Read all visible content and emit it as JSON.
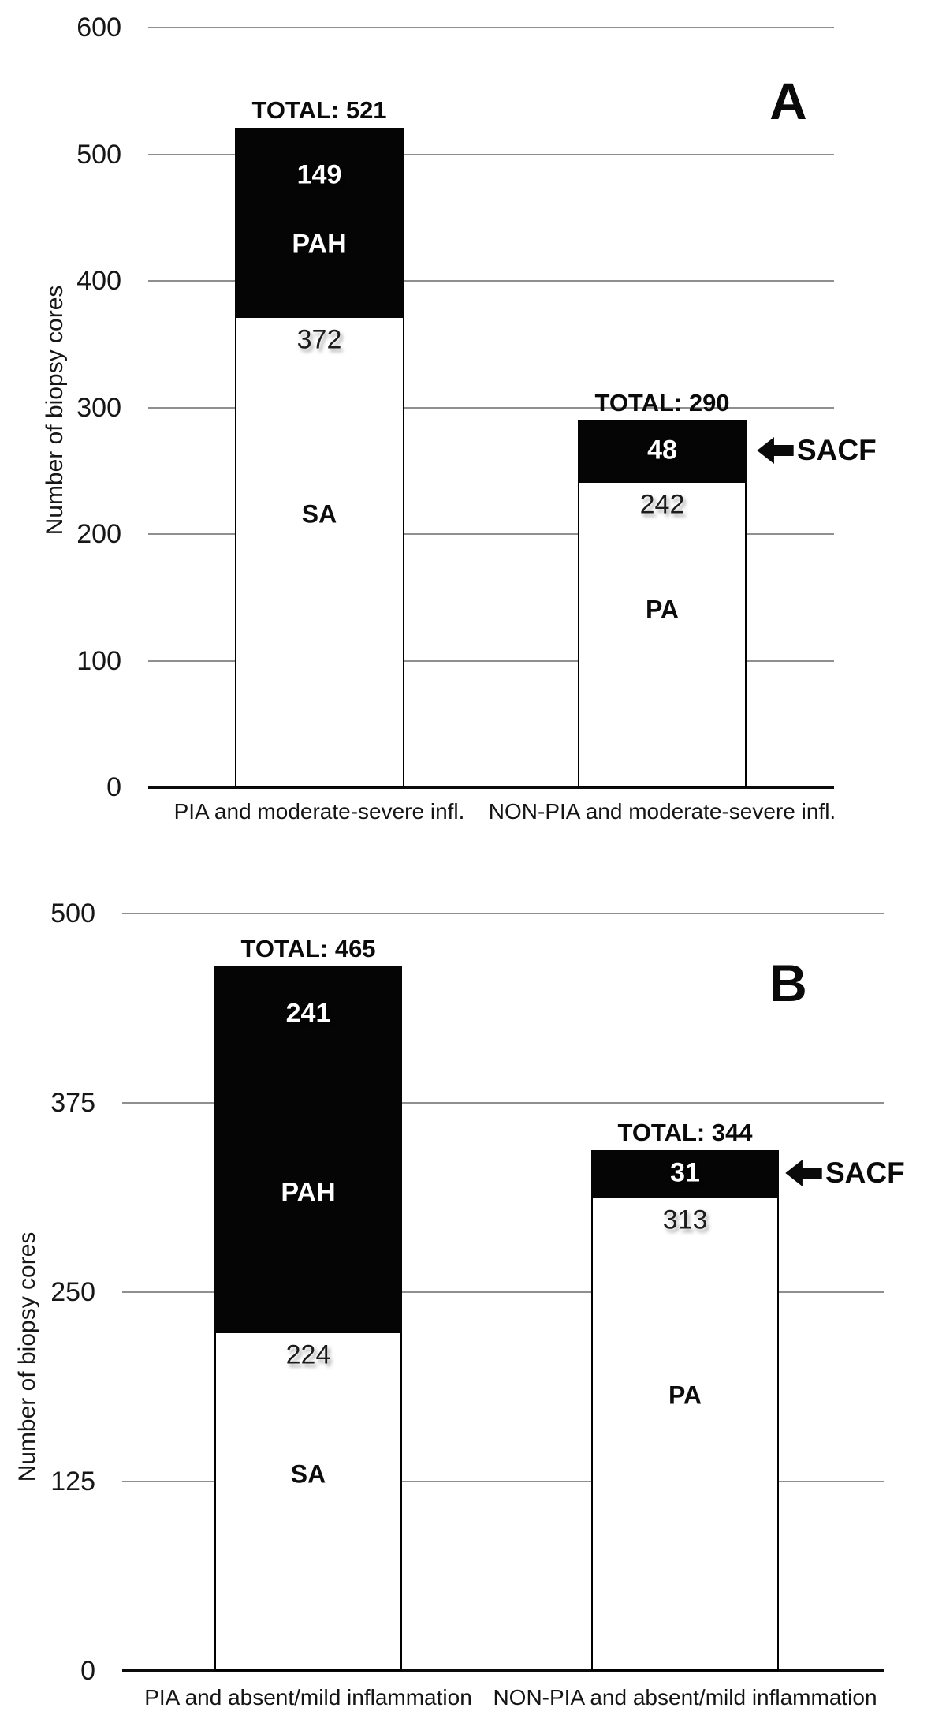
{
  "colors": {
    "segment_black": "#050505",
    "segment_white": "#ffffff",
    "grid": "#8f8f8f",
    "axis_line": "#0b0b0b",
    "text": "#111111"
  },
  "chart_data": [
    {
      "type": "bar",
      "panel_label": "A",
      "ylabel": "Number of biopsy cores",
      "ylim": [
        0,
        600
      ],
      "yticks": [
        0,
        100,
        200,
        300,
        400,
        500,
        600
      ],
      "grid": true,
      "legend_position": "none",
      "categories": [
        "PIA and moderate-severe infl.",
        "NON-PIA and moderate-severe infl."
      ],
      "bars": [
        {
          "category": "PIA and moderate-severe infl.",
          "total": 521,
          "total_label": "TOTAL: 521",
          "segments": [
            {
              "label": "SA",
              "value": 372,
              "fill": "white",
              "name_inside": true
            },
            {
              "label": "PAH",
              "value": 149,
              "fill": "black",
              "name_inside": true
            }
          ]
        },
        {
          "category": "NON-PIA and moderate-severe infl.",
          "total": 290,
          "total_label": "TOTAL: 290",
          "annotation": "SACF",
          "segments": [
            {
              "label": "PA",
              "value": 242,
              "fill": "white",
              "name_inside": true
            },
            {
              "label": "SACF",
              "value": 48,
              "fill": "black",
              "name_inside": false
            }
          ]
        }
      ]
    },
    {
      "type": "bar",
      "panel_label": "B",
      "ylabel": "Number of biopsy cores",
      "ylim": [
        0,
        500
      ],
      "yticks": [
        0,
        125,
        250,
        375,
        500
      ],
      "grid": true,
      "legend_position": "none",
      "categories": [
        "PIA and absent/mild inflammation",
        "NON-PIA and absent/mild inflammation"
      ],
      "bars": [
        {
          "category": "PIA and absent/mild inflammation",
          "total": 465,
          "total_label": "TOTAL: 465",
          "segments": [
            {
              "label": "SA",
              "value": 224,
              "fill": "white",
              "name_inside": true
            },
            {
              "label": "PAH",
              "value": 241,
              "fill": "black",
              "name_inside": true
            }
          ]
        },
        {
          "category": "NON-PIA and absent/mild inflammation",
          "total": 344,
          "total_label": "TOTAL: 344",
          "annotation": "SACF",
          "segments": [
            {
              "label": "PA",
              "value": 313,
              "fill": "white",
              "name_inside": true
            },
            {
              "label": "SACF",
              "value": 31,
              "fill": "black",
              "name_inside": false
            }
          ]
        }
      ]
    }
  ]
}
